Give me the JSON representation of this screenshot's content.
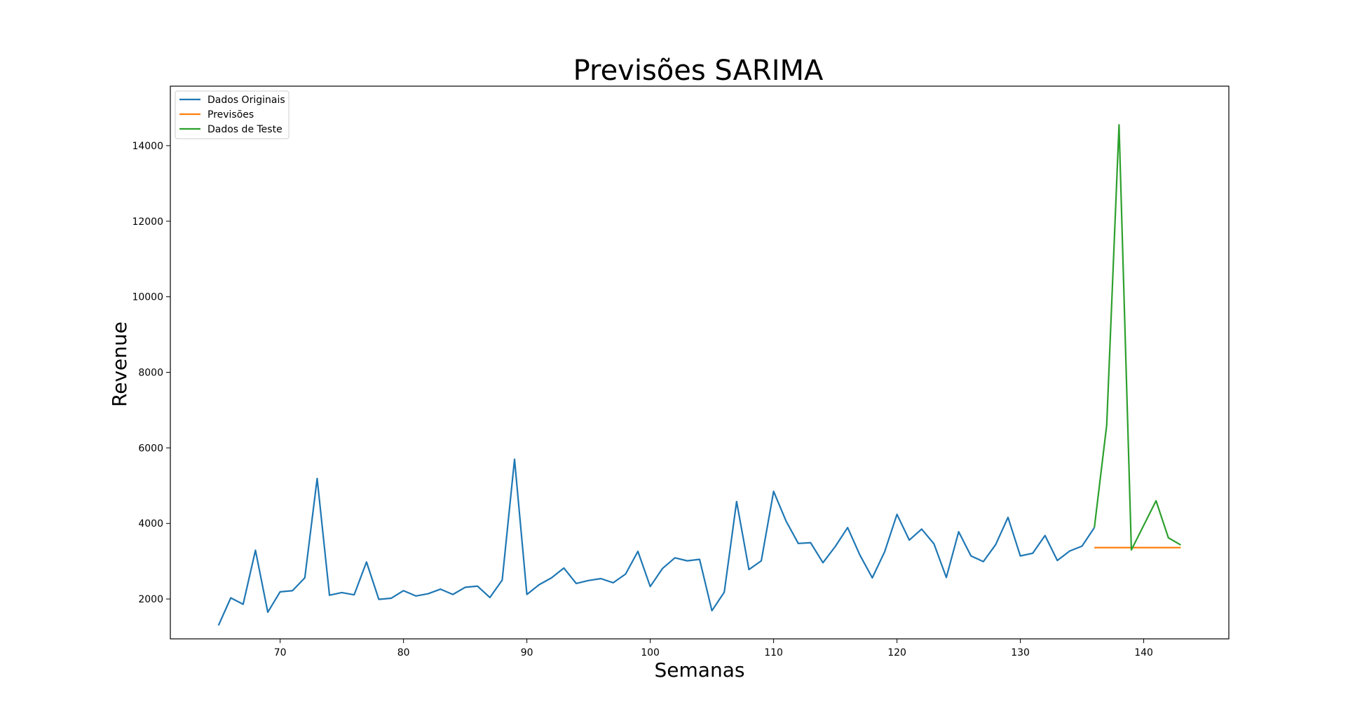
{
  "chart_data": {
    "type": "line",
    "title": "Previsões SARIMA",
    "xlabel": "Semanas",
    "ylabel": "Revenue",
    "xlim": [
      61.1,
      146.9
    ],
    "ylim": [
      945,
      15575
    ],
    "xticks": [
      70,
      80,
      90,
      100,
      110,
      120,
      130,
      140
    ],
    "yticks": [
      2000,
      4000,
      6000,
      8000,
      10000,
      12000,
      14000
    ],
    "grid": false,
    "legend_position": "upper-left",
    "series": [
      {
        "name": "Dados Originais",
        "color": "#1f77b4",
        "x": [
          65,
          66,
          67,
          68,
          69,
          70,
          71,
          72,
          73,
          74,
          75,
          76,
          77,
          78,
          79,
          80,
          81,
          82,
          83,
          84,
          85,
          86,
          87,
          88,
          89,
          90,
          91,
          92,
          93,
          94,
          95,
          96,
          97,
          98,
          99,
          100,
          101,
          102,
          103,
          104,
          105,
          106,
          107,
          108,
          109,
          110,
          111,
          112,
          113,
          114,
          115,
          116,
          117,
          118,
          119,
          120,
          121,
          122,
          123,
          124,
          125,
          126,
          127,
          128,
          129,
          130,
          131,
          132,
          133,
          134,
          135,
          136
        ],
        "y": [
          1300,
          2030,
          1860,
          3290,
          1650,
          2190,
          2220,
          2560,
          5190,
          2100,
          2170,
          2110,
          2980,
          1990,
          2020,
          2220,
          2080,
          2140,
          2260,
          2120,
          2310,
          2340,
          2040,
          2500,
          5700,
          2120,
          2380,
          2560,
          2820,
          2410,
          2490,
          2540,
          2430,
          2660,
          3260,
          2330,
          2810,
          3090,
          3010,
          3050,
          1690,
          2180,
          4580,
          2780,
          3010,
          4850,
          4070,
          3470,
          3490,
          2960,
          3390,
          3890,
          3160,
          2560,
          3250,
          4240,
          3560,
          3850,
          3460,
          2570,
          3780,
          3140,
          2990,
          3440,
          4160,
          3140,
          3210,
          3680,
          3020,
          3270,
          3400,
          3890
        ]
      },
      {
        "name": "Previsões",
        "color": "#ff7f0e",
        "x": [
          136,
          137,
          138,
          139,
          140,
          141,
          142,
          143
        ],
        "y": [
          3360,
          3360,
          3360,
          3360,
          3360,
          3360,
          3360,
          3360
        ]
      },
      {
        "name": "Dados de Teste",
        "color": "#2ca02c",
        "x": [
          136,
          137,
          138,
          139,
          140,
          141,
          142,
          143
        ],
        "y": [
          3890,
          6600,
          14550,
          3300,
          3950,
          4600,
          3620,
          3430
        ]
      }
    ]
  }
}
